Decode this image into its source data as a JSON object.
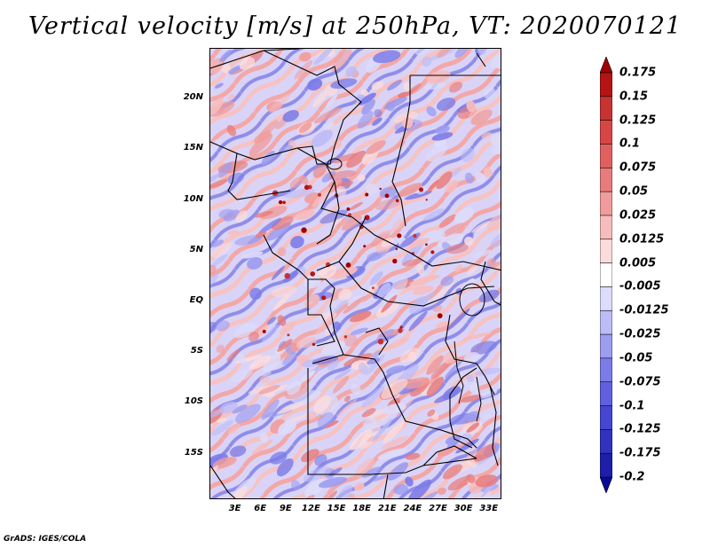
{
  "title": "Vertical velocity [m/s] at 250hPa, VT: 2020070121",
  "credit": "GrADS: IGES/COLA",
  "map": {
    "lat_labels": [
      "20N",
      "15N",
      "10N",
      "5N",
      "EQ",
      "5S",
      "10S",
      "15S"
    ],
    "lat_values": [
      20,
      15,
      10,
      5,
      0,
      -5,
      -10,
      -15
    ],
    "lon_labels": [
      "3E",
      "6E",
      "9E",
      "12E",
      "15E",
      "18E",
      "21E",
      "24E",
      "27E",
      "30E",
      "33E"
    ],
    "lon_values": [
      3,
      6,
      9,
      12,
      15,
      18,
      21,
      24,
      27,
      30,
      33
    ],
    "lat_range": [
      -19.5,
      25
    ],
    "lon_range": [
      0,
      34.5
    ],
    "field": "vertical velocity",
    "units": "m/s",
    "level": "250hPa"
  },
  "colorbar": {
    "labels": [
      "0.175",
      "0.15",
      "0.125",
      "0.1",
      "0.075",
      "0.05",
      "0.025",
      "0.0125",
      "0.005",
      "-0.005",
      "-0.0125",
      "-0.025",
      "-0.05",
      "-0.075",
      "-0.1",
      "-0.125",
      "-0.175",
      "-0.2"
    ],
    "colors": [
      "#a00000",
      "#b41414",
      "#c83232",
      "#d74646",
      "#e06060",
      "#e87c7c",
      "#f09c9c",
      "#f7bcbc",
      "#fbdcdc",
      "#ffffff",
      "#dcdcfb",
      "#bcbcf7",
      "#9c9cf0",
      "#7c7ce8",
      "#6060e0",
      "#4646d2",
      "#3232c0",
      "#1e1eaa",
      "#0a0a96"
    ]
  }
}
